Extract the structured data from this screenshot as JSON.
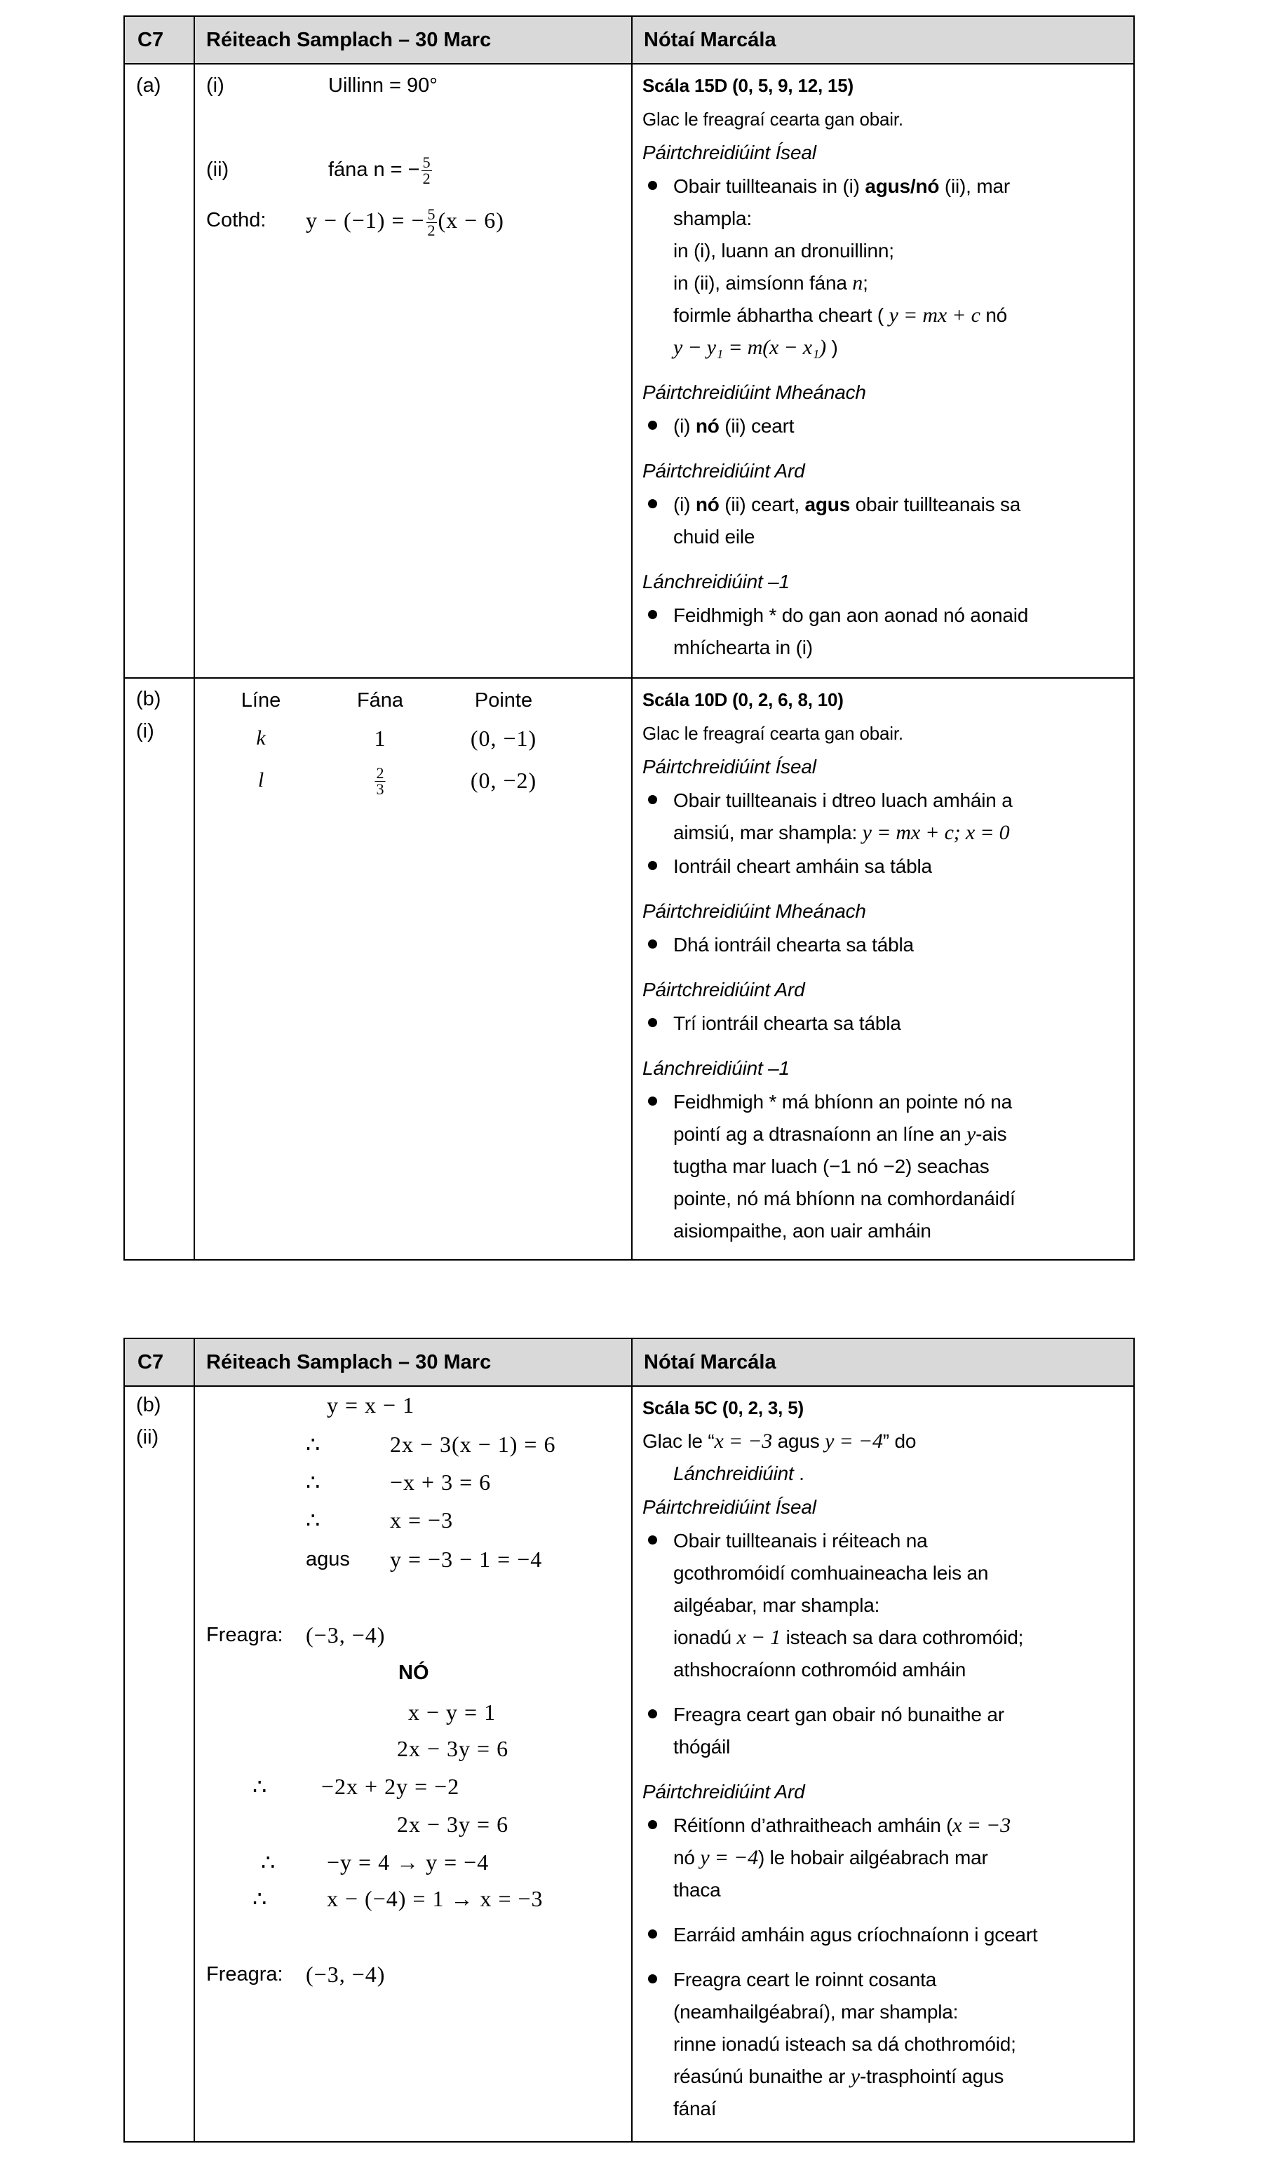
{
  "header": {
    "q": "C7",
    "solution": "Réiteach Samplach – 30 Marc",
    "notes": "Nótaí Marcála"
  },
  "table1": {
    "row_a": {
      "label": "(a)",
      "left": {
        "i_label": "(i)",
        "i_text": "Uillinn = 90°",
        "ii_label": "(ii)",
        "ii_text": "fána n = −",
        "ii_num": "5",
        "ii_den": "2",
        "eq_label": "Cothd:",
        "eq_pre": "y − (−1) = −",
        "eq_num": "5",
        "eq_den": "2",
        "eq_post": "(x − 6)"
      },
      "notes": [
        {
          "k": "scale",
          "lines": [
            [
              {
                "t": "Scála 15D (0, 5, 9, 12, 15)"
              }
            ]
          ]
        },
        {
          "k": "small",
          "lines": [
            [
              {
                "t": "Glac le freagraí cearta gan obair."
              }
            ]
          ]
        },
        {
          "k": "h",
          "lines": [
            [
              {
                "t": "Páirtchreidiúint Íseal"
              }
            ]
          ]
        },
        {
          "k": "bullet",
          "lines": [
            [
              {
                "t": "Obair tuillteanais in (i) "
              },
              {
                "t": "agus/nó",
                "s": "b"
              },
              {
                "t": " (ii), mar"
              }
            ],
            [
              {
                "t": "shampla:"
              }
            ],
            [
              {
                "t": "in (i), luann an dronuillinn;"
              }
            ],
            [
              {
                "t": "in (ii), aimsíonn fána "
              },
              {
                "t": "n",
                "s": "m"
              },
              {
                "t": ";"
              }
            ],
            [
              {
                "t": "foirmle ábhartha cheart ( "
              },
              {
                "t": "y = mx + c",
                "s": "m"
              },
              {
                "t": "  nó"
              }
            ],
            [
              {
                "t": "y − y₁ = m(x − x₁)",
                "s": "m"
              },
              {
                "t": " )"
              }
            ]
          ]
        },
        {
          "k": "h",
          "gap": true,
          "lines": [
            [
              {
                "t": "Páirtchreidiúint Mheánach"
              }
            ]
          ]
        },
        {
          "k": "bullet",
          "lines": [
            [
              {
                "t": "(i) "
              },
              {
                "t": "nó",
                "s": "b"
              },
              {
                "t": " (ii) ceart"
              }
            ]
          ]
        },
        {
          "k": "h",
          "gap": true,
          "lines": [
            [
              {
                "t": "Páirtchreidiúint Ard"
              }
            ]
          ]
        },
        {
          "k": "bullet",
          "lines": [
            [
              {
                "t": "(i) "
              },
              {
                "t": "nó",
                "s": "b"
              },
              {
                "t": " (ii) ceart, "
              },
              {
                "t": "agus",
                "s": "b"
              },
              {
                "t": " obair tuillteanais sa"
              }
            ],
            [
              {
                "t": "chuid eile"
              }
            ]
          ]
        },
        {
          "k": "h",
          "gap": true,
          "lines": [
            [
              {
                "t": "Lánchreidiúint  –1"
              }
            ]
          ]
        },
        {
          "k": "bullet",
          "lines": [
            [
              {
                "t": "Feidhmigh * do gan aon aonad nó aonaid"
              }
            ],
            [
              {
                "t": "mhíchearta  in (i)"
              }
            ]
          ]
        }
      ]
    },
    "row_b": {
      "label": "(b)",
      "sublabel": "(i)",
      "table": {
        "headers": [
          "Líne",
          "Fána",
          "Pointe"
        ],
        "rows": [
          {
            "line": "k",
            "slope": "1",
            "point": "(0, −1)"
          },
          {
            "line": "l",
            "slope_num": "2",
            "slope_den": "3",
            "point": "(0, −2)"
          }
        ]
      },
      "notes": [
        {
          "k": "scale",
          "lines": [
            [
              {
                "t": "Scála 10D (0, 2, 6, 8, 10)"
              }
            ]
          ]
        },
        {
          "k": "small",
          "lines": [
            [
              {
                "t": "Glac le freagraí cearta gan obair."
              }
            ]
          ]
        },
        {
          "k": "h",
          "lines": [
            [
              {
                "t": "Páirtchreidiúint Íseal"
              }
            ]
          ]
        },
        {
          "k": "bullet",
          "lines": [
            [
              {
                "t": "Obair tuillteanais i dtreo luach amháin a"
              }
            ],
            [
              {
                "t": "aimsiú, mar shampla: "
              },
              {
                "t": "y = mx + c;  x = 0",
                "s": "m"
              }
            ]
          ]
        },
        {
          "k": "bullet",
          "lines": [
            [
              {
                "t": "Iontráil cheart amháin sa tábla"
              }
            ]
          ]
        },
        {
          "k": "h",
          "gap": true,
          "lines": [
            [
              {
                "t": "Páirtchreidiúint Mheánach"
              }
            ]
          ]
        },
        {
          "k": "bullet",
          "lines": [
            [
              {
                "t": "Dhá iontráil chearta sa tábla"
              }
            ]
          ]
        },
        {
          "k": "h",
          "gap": true,
          "lines": [
            [
              {
                "t": "Páirtchreidiúint Ard"
              }
            ]
          ]
        },
        {
          "k": "bullet",
          "lines": [
            [
              {
                "t": "Trí iontráil chearta sa tábla"
              }
            ]
          ]
        },
        {
          "k": "h",
          "gap": true,
          "lines": [
            [
              {
                "t": "Lánchreidiúint  –1"
              }
            ]
          ]
        },
        {
          "k": "bullet",
          "lines": [
            [
              {
                "t": "Feidhmigh * má bhíonn an pointe nó na"
              }
            ],
            [
              {
                "t": "pointí ag a dtrasnaíonn an líne an "
              },
              {
                "t": "y",
                "s": "m"
              },
              {
                "t": "-ais"
              }
            ],
            [
              {
                "t": "tugtha mar luach (−1 nó −2) seachas"
              }
            ],
            [
              {
                "t": "pointe, nó má bhíonn na comhordanáidí"
              }
            ],
            [
              {
                "t": "aisiompaithe, aon uair amháin"
              }
            ]
          ]
        }
      ]
    }
  },
  "table2": {
    "label": "(b)",
    "sublabel": "(ii)",
    "left": {
      "l1": "y = x − 1",
      "therefore": "∴",
      "l2": "2x − 3(x − 1) = 6",
      "l3": "−x + 3 = 6",
      "l4": "x = −3",
      "agus": "agus",
      "l5": "y = −3 − 1   = −4",
      "answer_label": "Freagra:",
      "answer": "(−3, −4)",
      "or": "NÓ",
      "m1": "x − y = 1",
      "m2": "2x − 3y = 6",
      "m3": "−2x + 2y = −2",
      "m4": "2x − 3y = 6",
      "m5": "−y = 4 → y = −4",
      "m6": "x − (−4) = 1 → x = −3"
    },
    "notes": [
      {
        "k": "scale",
        "lines": [
          [
            {
              "t": "Scála 5C (0, 2, 3, 5)"
            }
          ]
        ]
      },
      {
        "k": "p",
        "lines": [
          [
            {
              "t": "Glac le “"
            },
            {
              "t": "x = −3",
              "s": "m"
            },
            {
              "t": " agus  "
            },
            {
              "t": "y = −4",
              "s": "m"
            },
            {
              "t": "” do"
            }
          ],
          [
            {
              "t": "Lánchreidiúint",
              "s": "i",
              "indent": true
            },
            {
              "t": " ."
            }
          ]
        ]
      },
      {
        "k": "h",
        "lines": [
          [
            {
              "t": "Páirtchreidiúint Íseal"
            }
          ]
        ]
      },
      {
        "k": "bullet",
        "lines": [
          [
            {
              "t": "Obair tuillteanais i réiteach na"
            }
          ],
          [
            {
              "t": "gcothromóidí comhuaineacha leis an"
            }
          ],
          [
            {
              "t": "ailgéabar, mar shampla:"
            }
          ],
          [
            {
              "t": "ionadú "
            },
            {
              "t": "x − 1",
              "s": "m"
            },
            {
              "t": " isteach sa dara cothromóid;"
            }
          ],
          [
            {
              "t": "athshocraíonn cothromóid amháin"
            }
          ]
        ]
      },
      {
        "k": "bullet",
        "gap": true,
        "lines": [
          [
            {
              "t": "Freagra ceart gan obair nó bunaithe ar"
            }
          ],
          [
            {
              "t": "thógáil"
            }
          ]
        ]
      },
      {
        "k": "h",
        "gap": true,
        "lines": [
          [
            {
              "t": "Páirtchreidiúint Ard"
            }
          ]
        ]
      },
      {
        "k": "bullet",
        "lines": [
          [
            {
              "t": "Réitíonn d’athraitheach amháin ("
            },
            {
              "t": "x = −3",
              "s": "m"
            }
          ],
          [
            {
              "t": "nó "
            },
            {
              "t": "y = −4",
              "s": "m"
            },
            {
              "t": ") le hobair ailgéabrach mar"
            }
          ],
          [
            {
              "t": "thaca"
            }
          ]
        ]
      },
      {
        "k": "bullet",
        "gap": true,
        "lines": [
          [
            {
              "t": "Earráid amháin agus críochnaíonn i gceart"
            }
          ]
        ]
      },
      {
        "k": "bullet",
        "gap": true,
        "lines": [
          [
            {
              "t": "Freagra ceart le roinnt cosanta"
            }
          ],
          [
            {
              "t": "(neamhailgéabraí), mar shampla:"
            }
          ],
          [
            {
              "t": "rinne ionadú isteach sa dá chothromóid;"
            }
          ],
          [
            {
              "t": "réasúnú bunaithe ar "
            },
            {
              "t": "y",
              "s": "m"
            },
            {
              "t": "-trasphointí agus"
            }
          ],
          [
            {
              "t": "fánaí"
            }
          ]
        ]
      }
    ]
  }
}
